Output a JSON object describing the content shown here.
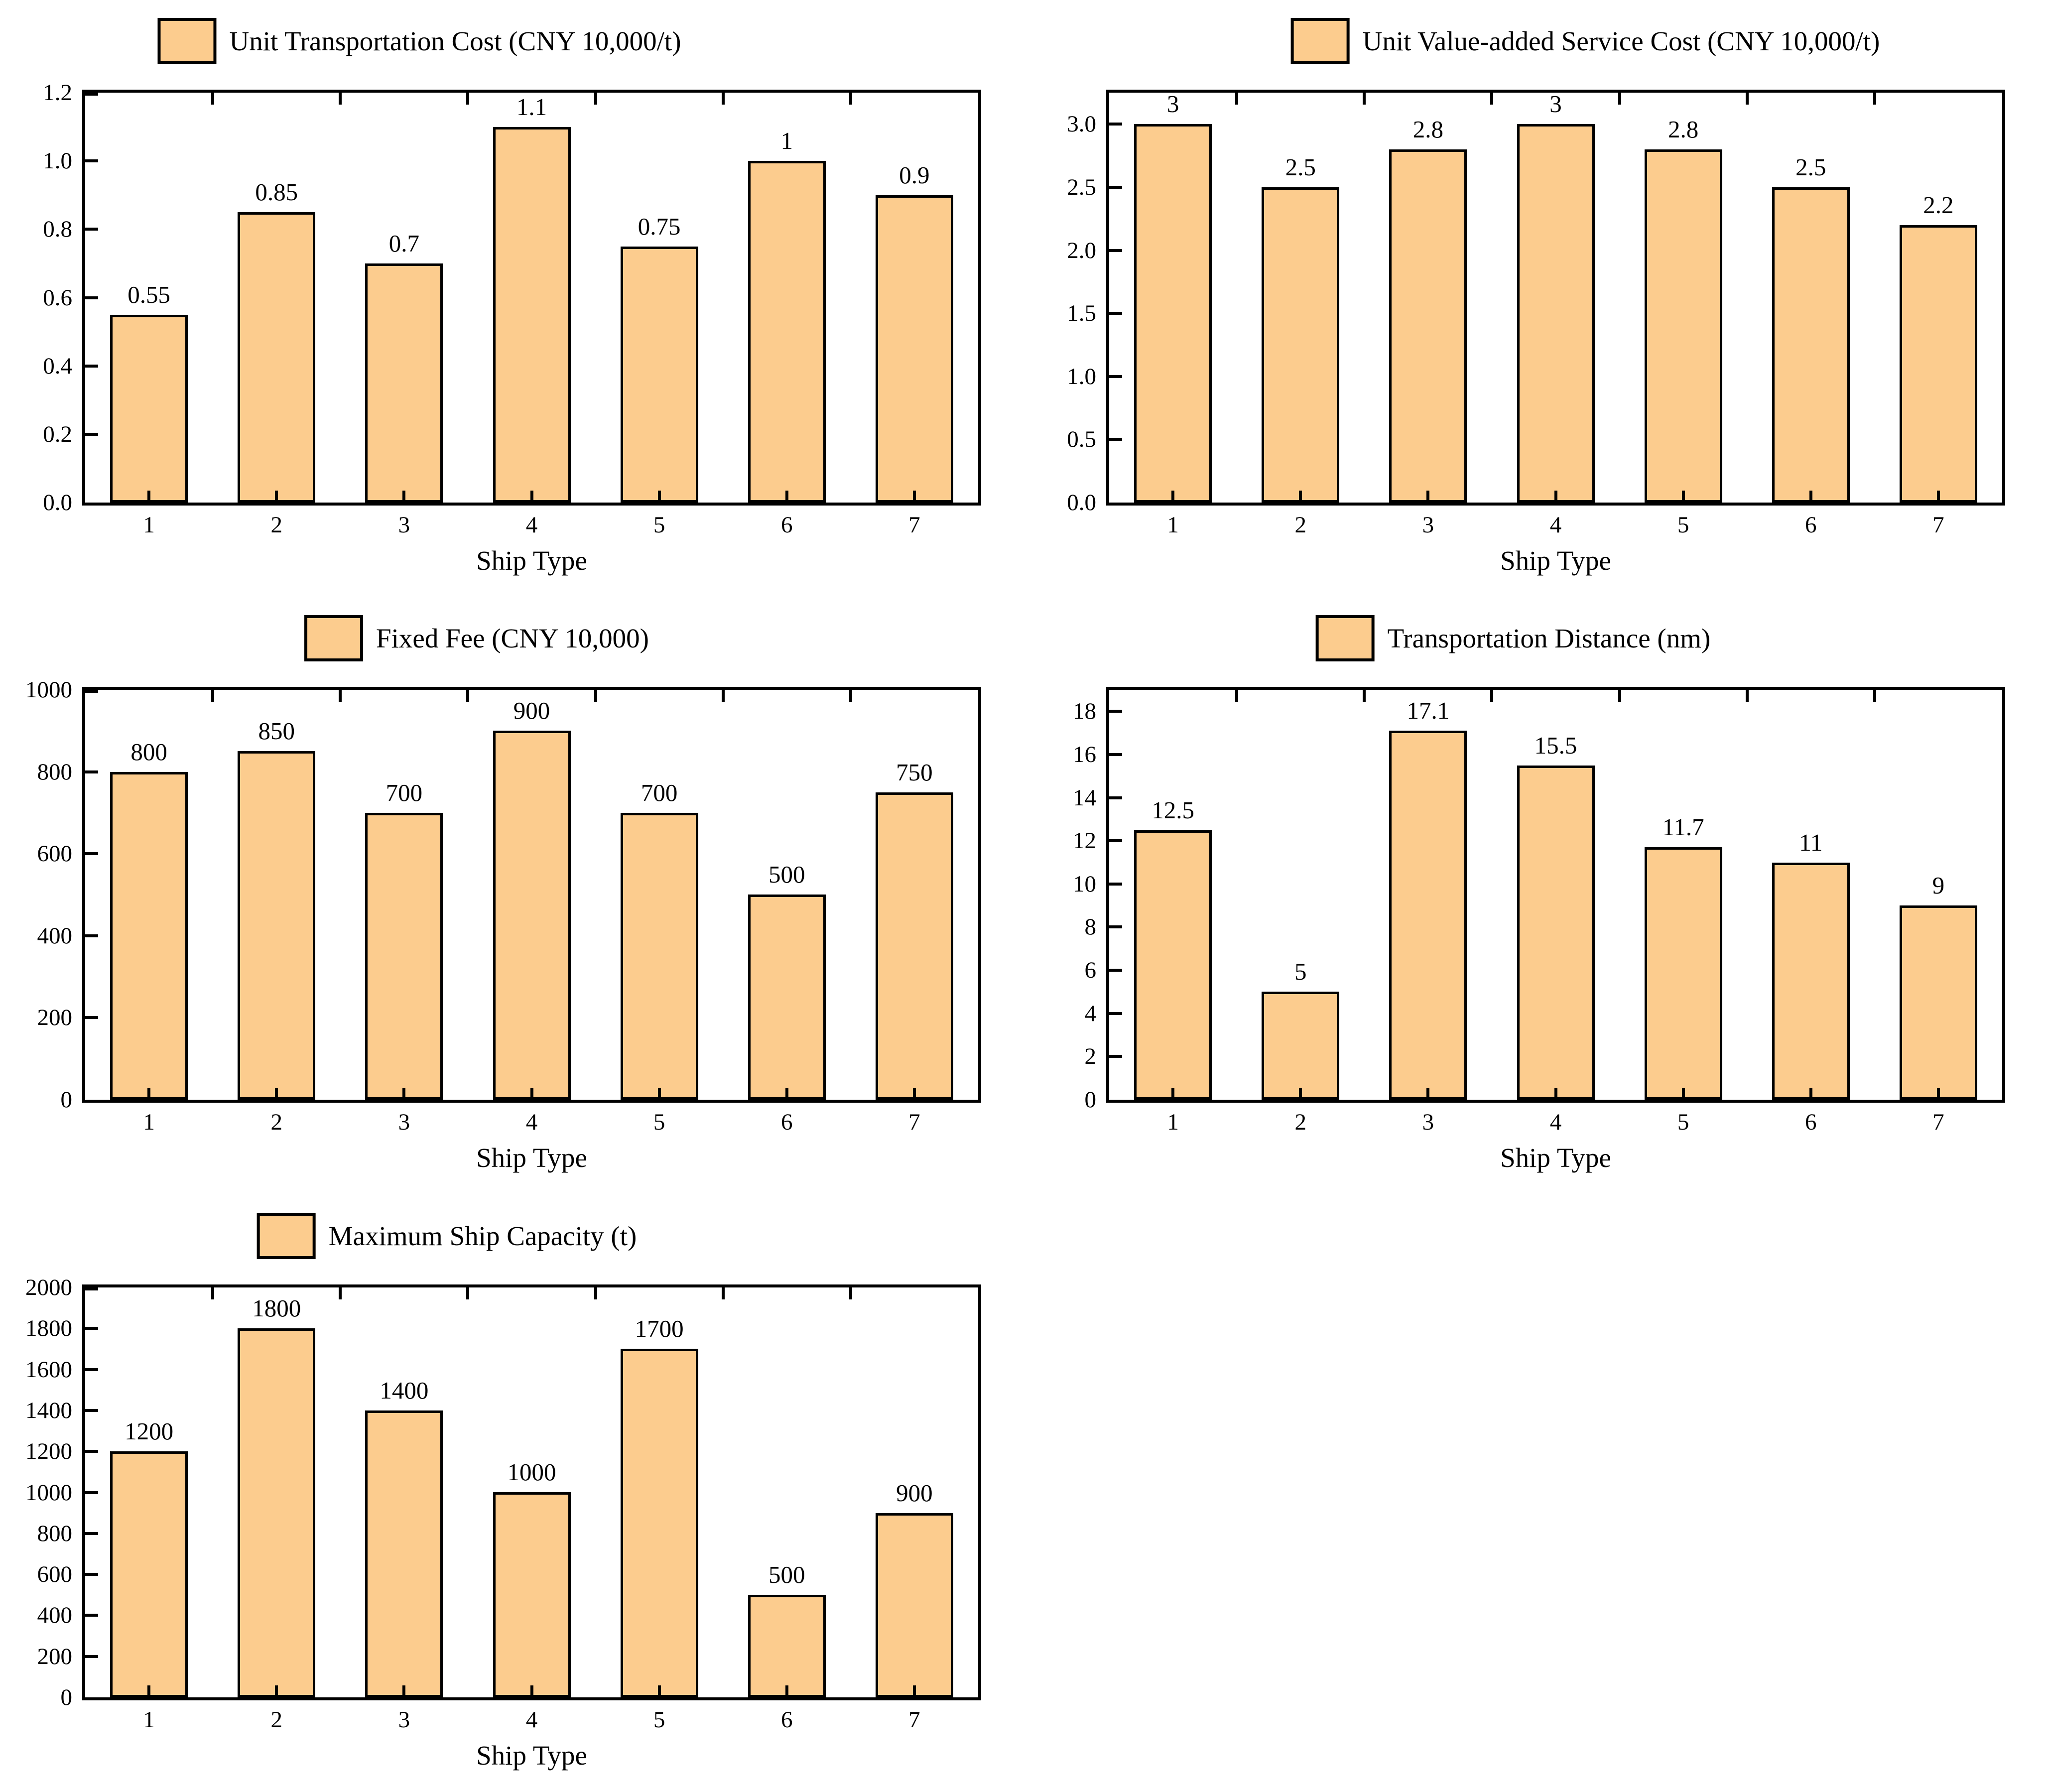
{
  "figure": {
    "background": "#ffffff",
    "panel_count": 5,
    "x_axis_title": "Ship Type"
  },
  "colors": {
    "bar_fill": "#FCCC8E",
    "bar_border": "#000000",
    "axis": "#000000",
    "text": "#000000"
  },
  "chart_data": [
    {
      "type": "bar",
      "legend": "Unit Transportation Cost (CNY 10,000/t)",
      "xlabel": "Ship Type",
      "categories": [
        "1",
        "2",
        "3",
        "4",
        "5",
        "6",
        "7"
      ],
      "values": [
        0.55,
        0.85,
        0.7,
        1.1,
        0.75,
        1,
        0.9
      ],
      "value_labels": [
        "0.55",
        "0.85",
        "0.7",
        "1.1",
        "0.75",
        "1",
        "0.9"
      ],
      "ylim": [
        0,
        1.2
      ],
      "yticks": [
        {
          "v": 0,
          "label": "0.0"
        },
        {
          "v": 0.2,
          "label": "0.2"
        },
        {
          "v": 0.4,
          "label": "0.4"
        },
        {
          "v": 0.6,
          "label": "0.6"
        },
        {
          "v": 0.8,
          "label": "0.8"
        },
        {
          "v": 1,
          "label": "1.0"
        },
        {
          "v": 1.2,
          "label": "1.2"
        }
      ],
      "grid": false,
      "legend_position": "top-center"
    },
    {
      "type": "bar",
      "legend": "Unit Value-added Service Cost (CNY 10,000/t)",
      "xlabel": "Ship Type",
      "categories": [
        "1",
        "2",
        "3",
        "4",
        "5",
        "6",
        "7"
      ],
      "values": [
        3,
        2.5,
        2.8,
        3,
        2.8,
        2.5,
        2.2
      ],
      "value_labels": [
        "3",
        "2.5",
        "2.8",
        "3",
        "2.8",
        "2.5",
        "2.2"
      ],
      "ylim": [
        0,
        3.25
      ],
      "yticks": [
        {
          "v": 0,
          "label": "0.0"
        },
        {
          "v": 0.5,
          "label": "0.5"
        },
        {
          "v": 1,
          "label": "1.0"
        },
        {
          "v": 1.5,
          "label": "1.5"
        },
        {
          "v": 2,
          "label": "2.0"
        },
        {
          "v": 2.5,
          "label": "2.5"
        },
        {
          "v": 3,
          "label": "3.0"
        }
      ],
      "grid": false,
      "legend_position": "top-center"
    },
    {
      "type": "bar",
      "legend": "Fixed Fee (CNY 10,000)",
      "xlabel": "Ship Type",
      "categories": [
        "1",
        "2",
        "3",
        "4",
        "5",
        "6",
        "7"
      ],
      "values": [
        800,
        850,
        700,
        900,
        700,
        500,
        750
      ],
      "value_labels": [
        "800",
        "850",
        "700",
        "900",
        "700",
        "500",
        "750"
      ],
      "ylim": [
        0,
        1000
      ],
      "yticks": [
        {
          "v": 0,
          "label": "0"
        },
        {
          "v": 200,
          "label": "200"
        },
        {
          "v": 400,
          "label": "400"
        },
        {
          "v": 600,
          "label": "600"
        },
        {
          "v": 800,
          "label": "800"
        },
        {
          "v": 1000,
          "label": "1000"
        }
      ],
      "grid": false,
      "legend_position": "top-center"
    },
    {
      "type": "bar",
      "legend": "Transportation Distance (nm)",
      "xlabel": "Ship Type",
      "categories": [
        "1",
        "2",
        "3",
        "4",
        "5",
        "6",
        "7"
      ],
      "values": [
        12.5,
        5,
        17.1,
        15.5,
        11.7,
        11,
        9
      ],
      "value_labels": [
        "12.5",
        "5",
        "17.1",
        "15.5",
        "11.7",
        "11",
        "9"
      ],
      "ylim": [
        0,
        19
      ],
      "yticks": [
        {
          "v": 0,
          "label": "0"
        },
        {
          "v": 2,
          "label": "2"
        },
        {
          "v": 4,
          "label": "4"
        },
        {
          "v": 6,
          "label": "6"
        },
        {
          "v": 8,
          "label": "8"
        },
        {
          "v": 10,
          "label": "10"
        },
        {
          "v": 12,
          "label": "12"
        },
        {
          "v": 14,
          "label": "14"
        },
        {
          "v": 16,
          "label": "16"
        },
        {
          "v": 18,
          "label": "18"
        }
      ],
      "grid": false,
      "legend_position": "top-center"
    },
    {
      "type": "bar",
      "legend": "Maximum Ship Capacity (t)",
      "xlabel": "Ship Type",
      "categories": [
        "1",
        "2",
        "3",
        "4",
        "5",
        "6",
        "7"
      ],
      "values": [
        1200,
        1800,
        1400,
        1000,
        1700,
        500,
        900
      ],
      "value_labels": [
        "1200",
        "1800",
        "1400",
        "1000",
        "1700",
        "500",
        "900"
      ],
      "ylim": [
        0,
        2000
      ],
      "yticks": [
        {
          "v": 0,
          "label": "0"
        },
        {
          "v": 200,
          "label": "200"
        },
        {
          "v": 400,
          "label": "400"
        },
        {
          "v": 600,
          "label": "600"
        },
        {
          "v": 800,
          "label": "800"
        },
        {
          "v": 1000,
          "label": "1000"
        },
        {
          "v": 1200,
          "label": "1200"
        },
        {
          "v": 1400,
          "label": "1400"
        },
        {
          "v": 1600,
          "label": "1600"
        },
        {
          "v": 1800,
          "label": "1800"
        },
        {
          "v": 2000,
          "label": "2000"
        }
      ],
      "grid": false,
      "legend_position": "top-center"
    }
  ]
}
